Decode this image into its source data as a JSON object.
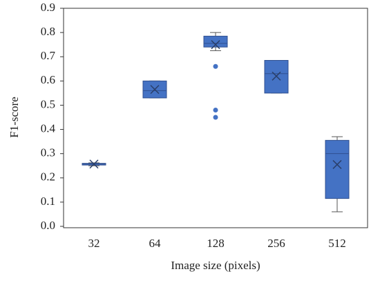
{
  "chart_data": {
    "type": "box",
    "x_label": "Image size (pixels)",
    "y_label": "F1-score",
    "categories": [
      "32",
      "64",
      "128",
      "256",
      "512"
    ],
    "color": "#4472c4",
    "boxes": [
      {
        "min": 0.25,
        "q1": 0.253,
        "median": 0.257,
        "q3": 0.26,
        "max": 0.262,
        "mean": 0.257,
        "outliers": []
      },
      {
        "min": 0.53,
        "q1": 0.53,
        "median": 0.56,
        "q3": 0.6,
        "max": 0.6,
        "mean": 0.565,
        "outliers": []
      },
      {
        "min": 0.725,
        "q1": 0.74,
        "median": 0.755,
        "q3": 0.785,
        "max": 0.8,
        "mean": 0.75,
        "outliers": [
          0.66,
          0.48,
          0.45
        ]
      },
      {
        "min": 0.55,
        "q1": 0.55,
        "median": 0.63,
        "q3": 0.685,
        "max": 0.685,
        "mean": 0.62,
        "outliers": []
      },
      {
        "min": 0.06,
        "q1": 0.115,
        "median": 0.3,
        "q3": 0.355,
        "max": 0.37,
        "mean": 0.255,
        "outliers": []
      }
    ],
    "ylim": [
      0,
      0.9
    ],
    "yticks": [
      {
        "value": 0,
        "label": "0.0"
      },
      0.1,
      0.2,
      0.3,
      0.4,
      0.5,
      0.6,
      0.7,
      0.8,
      0.9
    ]
  }
}
